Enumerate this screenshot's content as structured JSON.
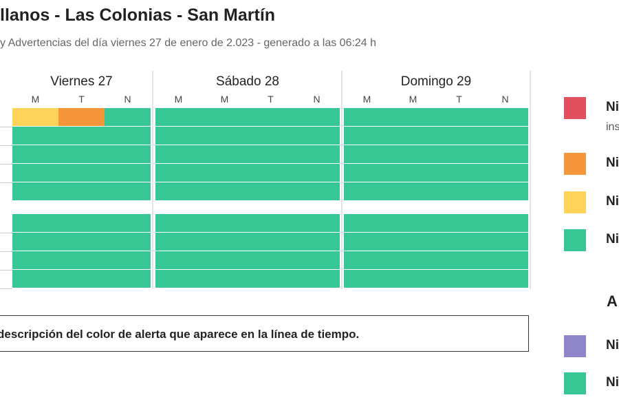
{
  "header": {
    "title": "llanos - Las Colonias - San Martín",
    "subtitle": "y Advertencias del día viernes 27 de enero de 2.023 - generado a las 06:24 h"
  },
  "timeline": {
    "days": [
      {
        "label": "Viernes 27",
        "columns": [
          "M",
          "T",
          "N"
        ],
        "rows": [
          [
            "#fdd35a",
            "#f6963a",
            "#36c795"
          ],
          [
            "#36c795",
            "#36c795",
            "#36c795"
          ],
          [
            "#36c795",
            "#36c795",
            "#36c795"
          ],
          [
            "#36c795",
            "#36c795",
            "#36c795"
          ],
          [
            "#36c795",
            "#36c795",
            "#36c795"
          ],
          [
            "#36c795",
            "#36c795",
            "#36c795"
          ],
          [
            "#36c795",
            "#36c795",
            "#36c795"
          ],
          [
            "#36c795",
            "#36c795",
            "#36c795"
          ],
          [
            "#36c795",
            "#36c795",
            "#36c795"
          ]
        ]
      },
      {
        "label": "Sábado 28",
        "columns": [
          "M",
          "M",
          "T",
          "N"
        ],
        "rows": [
          [
            "#36c795",
            "#36c795",
            "#36c795",
            "#36c795"
          ],
          [
            "#36c795",
            "#36c795",
            "#36c795",
            "#36c795"
          ],
          [
            "#36c795",
            "#36c795",
            "#36c795",
            "#36c795"
          ],
          [
            "#36c795",
            "#36c795",
            "#36c795",
            "#36c795"
          ],
          [
            "#36c795",
            "#36c795",
            "#36c795",
            "#36c795"
          ],
          [
            "#36c795",
            "#36c795",
            "#36c795",
            "#36c795"
          ],
          [
            "#36c795",
            "#36c795",
            "#36c795",
            "#36c795"
          ],
          [
            "#36c795",
            "#36c795",
            "#36c795",
            "#36c795"
          ],
          [
            "#36c795",
            "#36c795",
            "#36c795",
            "#36c795"
          ]
        ]
      },
      {
        "label": "Domingo 29",
        "columns": [
          "M",
          "M",
          "T",
          "N"
        ],
        "rows": [
          [
            "#36c795",
            "#36c795",
            "#36c795",
            "#36c795"
          ],
          [
            "#36c795",
            "#36c795",
            "#36c795",
            "#36c795"
          ],
          [
            "#36c795",
            "#36c795",
            "#36c795",
            "#36c795"
          ],
          [
            "#36c795",
            "#36c795",
            "#36c795",
            "#36c795"
          ],
          [
            "#36c795",
            "#36c795",
            "#36c795",
            "#36c795"
          ],
          [
            "#36c795",
            "#36c795",
            "#36c795",
            "#36c795"
          ],
          [
            "#36c795",
            "#36c795",
            "#36c795",
            "#36c795"
          ],
          [
            "#36c795",
            "#36c795",
            "#36c795",
            "#36c795"
          ],
          [
            "#36c795",
            "#36c795",
            "#36c795",
            "#36c795"
          ]
        ]
      }
    ]
  },
  "note": "descripción del color de alerta que aparece en la línea de tiempo.",
  "legend": {
    "items": [
      {
        "color": "#e0505f",
        "label": "Ni",
        "sub": "ins"
      },
      {
        "color": "#f6963a",
        "label": "Ni"
      },
      {
        "color": "#fdd35a",
        "label": "Ni"
      },
      {
        "color": "#36c795",
        "label": "Ni"
      }
    ],
    "heading": "A",
    "items2": [
      {
        "color": "#8e86c9",
        "label": "Ni"
      },
      {
        "color": "#36c795",
        "label": "Ni"
      }
    ]
  }
}
